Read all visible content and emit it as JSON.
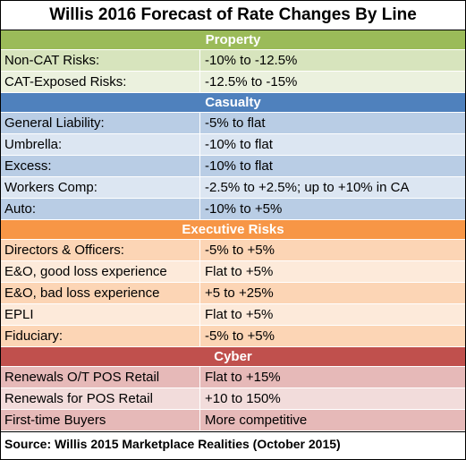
{
  "title": "Willis 2016 Forecast of Rate Changes By Line",
  "colors": {
    "property_header": "#9BBB59",
    "property_row_a": "#D7E4BD",
    "property_row_b": "#EBF1DE",
    "casualty_header": "#4F81BD",
    "casualty_row_a": "#B9CDE5",
    "casualty_row_b": "#DCE6F2",
    "executive_header": "#F79646",
    "executive_row_a": "#FCD5B5",
    "executive_row_b": "#FDEADA",
    "cyber_header": "#C0504D",
    "cyber_row_a": "#E6B9B8",
    "cyber_row_b": "#F2DCDB"
  },
  "sections": [
    {
      "name": "Property",
      "rows": [
        {
          "line": "Non-CAT Risks:",
          "forecast": "-10% to -12.5%"
        },
        {
          "line": "CAT-Exposed Risks:",
          "forecast": "-12.5% to -15%"
        }
      ]
    },
    {
      "name": "Casualty",
      "rows": [
        {
          "line": "General Liability:",
          "forecast": "-5% to flat"
        },
        {
          "line": "Umbrella:",
          "forecast": "-10% to flat"
        },
        {
          "line": "Excess:",
          "forecast": "-10% to flat"
        },
        {
          "line": "Workers Comp:",
          "forecast": "-2.5% to +2.5%; up to +10% in CA"
        },
        {
          "line": "Auto:",
          "forecast": "-10% to +5%"
        }
      ]
    },
    {
      "name": "Executive Risks",
      "rows": [
        {
          "line": "Directors & Officers:",
          "forecast": "-5% to +5%"
        },
        {
          "line": "E&O, good loss experience",
          "forecast": "Flat to +5%"
        },
        {
          "line": "E&O, bad loss experience",
          "forecast": "+5 to +25%"
        },
        {
          "line": "EPLI",
          "forecast": "Flat to +5%"
        },
        {
          "line": "Fiduciary:",
          "forecast": "-5% to +5%"
        }
      ]
    },
    {
      "name": "Cyber",
      "rows": [
        {
          "line": "Renewals O/T POS Retail",
          "forecast": "Flat to +15%"
        },
        {
          "line": "Renewals for POS Retail",
          "forecast": "+10 to 150%"
        },
        {
          "line": "First-time Buyers",
          "forecast": "More competitive"
        }
      ]
    }
  ],
  "source": "Source: Willis 2015 Marketplace Realities (October 2015)"
}
